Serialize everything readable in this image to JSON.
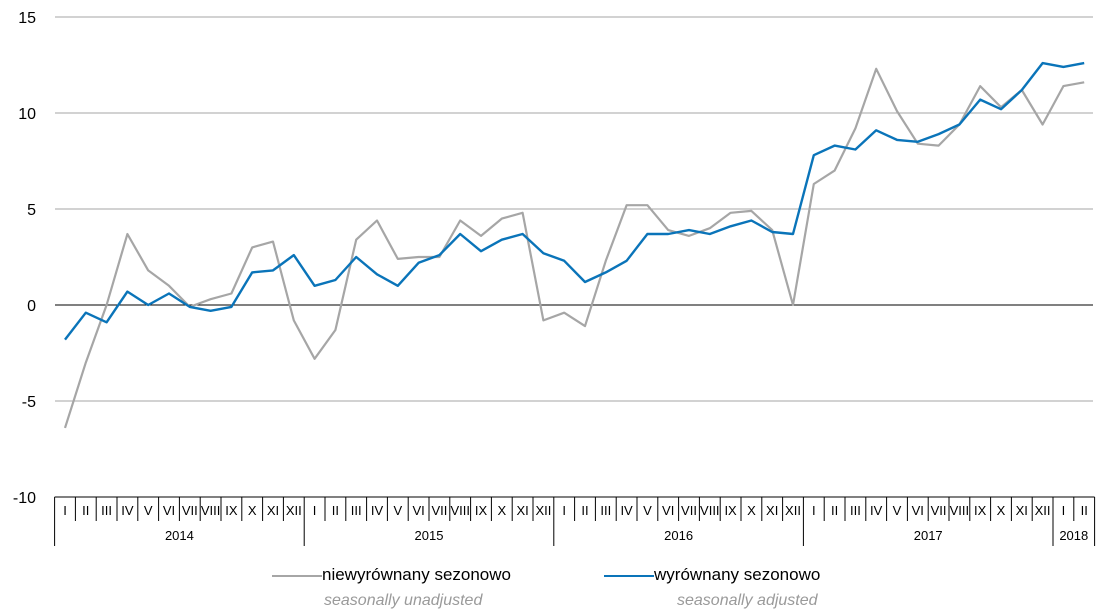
{
  "colors": {
    "unadjusted": "#a6a6a6",
    "adjusted": "#0a74b9",
    "grid": "#a6a6a6",
    "axis": "#000000"
  },
  "chart_data": {
    "type": "line",
    "title": "",
    "xlabel": "",
    "ylabel": "",
    "ylim": [
      -10,
      15
    ],
    "yticks": [
      15,
      10,
      5,
      0,
      -5,
      -10
    ],
    "grid": true,
    "legend_position": "bottom",
    "months": [
      "I",
      "II",
      "III",
      "IV",
      "V",
      "VI",
      "VII",
      "VIII",
      "IX",
      "X",
      "XI",
      "XII",
      "I",
      "II",
      "III",
      "IV",
      "V",
      "VI",
      "VII",
      "VIII",
      "IX",
      "X",
      "XI",
      "XII",
      "I",
      "II",
      "III",
      "IV",
      "V",
      "VI",
      "VII",
      "VIII",
      "IX",
      "X",
      "XI",
      "XII",
      "I",
      "II",
      "III",
      "IV",
      "V",
      "VI",
      "VII",
      "VIII",
      "IX",
      "X",
      "XI",
      "XII",
      "I",
      "II"
    ],
    "years": [
      {
        "label": "2014",
        "months": 12
      },
      {
        "label": "2015",
        "months": 12
      },
      {
        "label": "2016",
        "months": 12
      },
      {
        "label": "2017",
        "months": 12
      },
      {
        "label": "2018",
        "months": 2
      }
    ],
    "series": [
      {
        "name": "niewyrównany sezonowo",
        "name_en": "seasonally unadjusted",
        "color": "#a6a6a6",
        "values": [
          -6.4,
          -3.0,
          0.0,
          3.7,
          1.8,
          1.0,
          -0.1,
          0.3,
          0.6,
          3.0,
          3.3,
          -0.8,
          -2.8,
          -1.3,
          3.4,
          4.4,
          2.4,
          2.5,
          2.5,
          4.4,
          3.6,
          4.5,
          4.8,
          -0.8,
          -0.4,
          -1.1,
          2.3,
          5.2,
          5.2,
          3.9,
          3.6,
          4.0,
          4.8,
          4.9,
          3.9,
          0.0,
          6.3,
          7.0,
          9.2,
          12.3,
          10.1,
          8.4,
          8.3,
          9.4,
          11.4,
          10.3,
          11.2,
          9.4,
          11.4,
          11.6
        ]
      },
      {
        "name": "wyrównany sezonowo",
        "name_en": "seasonally adjusted",
        "color": "#0a74b9",
        "values": [
          -1.8,
          -0.4,
          -0.9,
          0.7,
          0.0,
          0.6,
          -0.1,
          -0.3,
          -0.1,
          1.7,
          1.8,
          2.6,
          1.0,
          1.3,
          2.5,
          1.6,
          1.0,
          2.2,
          2.6,
          3.7,
          2.8,
          3.4,
          3.7,
          2.7,
          2.3,
          1.2,
          1.7,
          2.3,
          3.7,
          3.7,
          3.9,
          3.7,
          4.1,
          4.4,
          3.8,
          3.7,
          7.8,
          8.3,
          8.1,
          9.1,
          8.6,
          8.5,
          8.9,
          9.4,
          10.7,
          10.2,
          11.2,
          12.6,
          12.4,
          12.6
        ]
      }
    ]
  }
}
